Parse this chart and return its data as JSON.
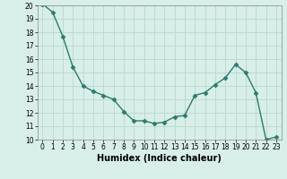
{
  "x": [
    0,
    1,
    2,
    3,
    4,
    5,
    6,
    7,
    8,
    9,
    10,
    11,
    12,
    13,
    14,
    15,
    16,
    17,
    18,
    19,
    20,
    21,
    22,
    23
  ],
  "y": [
    20.1,
    19.5,
    17.7,
    15.4,
    14.0,
    13.6,
    13.3,
    13.0,
    12.1,
    11.4,
    11.4,
    11.2,
    11.3,
    11.7,
    11.8,
    13.3,
    13.5,
    14.1,
    14.6,
    15.6,
    15.0,
    13.5,
    10.0,
    10.2
  ],
  "line_color": "#2d7a6e",
  "marker": "D",
  "marker_size": 2.5,
  "linewidth": 1.0,
  "xlabel": "Humidex (Indice chaleur)",
  "xlabel_fontsize": 7,
  "xlim": [
    -0.5,
    23.5
  ],
  "ylim": [
    10,
    20
  ],
  "ytick_values": [
    10,
    11,
    12,
    13,
    14,
    15,
    16,
    17,
    18,
    19,
    20
  ],
  "grid_color": "#b8d8d0",
  "bg_color": "#d8eee8",
  "tick_fontsize": 5.5
}
